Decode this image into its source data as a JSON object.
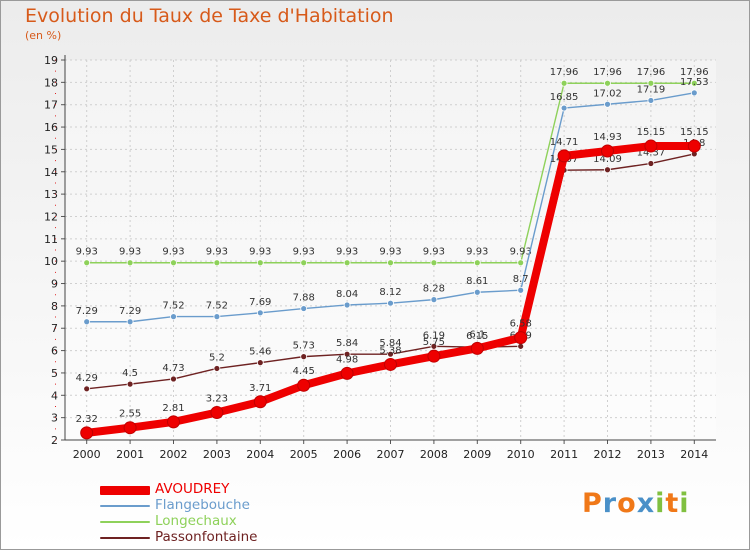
{
  "title": "Evolution du Taux de Taxe d'Habitation",
  "subtitle": "(en %)",
  "logo": {
    "letters": [
      "P",
      "r",
      "o",
      "x",
      "i",
      "t",
      "i"
    ],
    "colors": [
      "#f07818",
      "#4a90c8",
      "#f07818",
      "#4a90c8",
      "#80c040",
      "#f07818",
      "#80c040"
    ]
  },
  "chart_data": {
    "type": "line",
    "x": [
      "2000",
      "2001",
      "2002",
      "2003",
      "2004",
      "2005",
      "2006",
      "2007",
      "2008",
      "2009",
      "2010",
      "2011",
      "2012",
      "2013",
      "2014"
    ],
    "ylim": [
      2,
      19
    ],
    "yticks": [
      "2",
      "3",
      "4",
      "5",
      "6",
      "7",
      "8",
      "9",
      "10",
      "11",
      "12",
      "13",
      "14",
      "15",
      "16",
      "17",
      "18",
      "19"
    ],
    "grid": true,
    "legend_position": "bottom-left",
    "series": [
      {
        "name": "Longechaux",
        "color": "#8ed15a",
        "values": [
          9.93,
          9.93,
          9.93,
          9.93,
          9.93,
          9.93,
          9.93,
          9.93,
          9.93,
          9.93,
          9.93,
          17.96,
          17.96,
          17.96,
          17.96
        ],
        "labels": [
          "9.93",
          "9.93",
          "9.93",
          "9.93",
          "9.93",
          "9.93",
          "9.93",
          "9.93",
          "9.93",
          "9.93",
          "9.93",
          "17.96",
          "17.96",
          "17.96",
          "17.96"
        ]
      },
      {
        "name": "Flangebouche",
        "color": "#6a9ccc",
        "values": [
          7.29,
          7.29,
          7.52,
          7.52,
          7.69,
          7.88,
          8.04,
          8.12,
          8.28,
          8.61,
          8.7,
          16.85,
          17.02,
          17.19,
          17.53
        ],
        "labels": [
          "7.29",
          "7.29",
          "7.52",
          "7.52",
          "7.69",
          "7.88",
          "8.04",
          "8.12",
          "8.28",
          "8.61",
          "8.7",
          "16.85",
          "17.02",
          "17.19",
          "17.53"
        ]
      },
      {
        "name": "Passonfontaine",
        "color": "#6e2222",
        "values": [
          4.29,
          4.5,
          4.73,
          5.2,
          5.46,
          5.73,
          5.84,
          5.84,
          6.19,
          6.15,
          6.19,
          14.07,
          14.09,
          14.37,
          14.8
        ],
        "labels": [
          "4.29",
          "4.5",
          "4.73",
          "5.2",
          "5.46",
          "5.73",
          "5.84",
          "5.84",
          "6.19",
          "6.15",
          "6.19",
          "14.07",
          "14.09",
          "14.37",
          "14.8"
        ]
      },
      {
        "name": "AVOUDREY",
        "color": "#ee0000",
        "values": [
          2.32,
          2.55,
          2.81,
          3.23,
          3.71,
          4.45,
          4.98,
          5.38,
          5.75,
          6.1,
          6.58,
          14.71,
          14.93,
          15.15,
          15.15
        ],
        "labels": [
          "2.32",
          "2.55",
          "2.81",
          "3.23",
          "3.71",
          "4.45",
          "4.98",
          "5.38",
          "5.75",
          "6.1",
          "6.58",
          "14.71",
          "14.93",
          "15.15",
          "15.15"
        ]
      }
    ],
    "legend": [
      "AVOUDREY",
      "Flangebouche",
      "Longechaux",
      "Passonfontaine"
    ]
  }
}
